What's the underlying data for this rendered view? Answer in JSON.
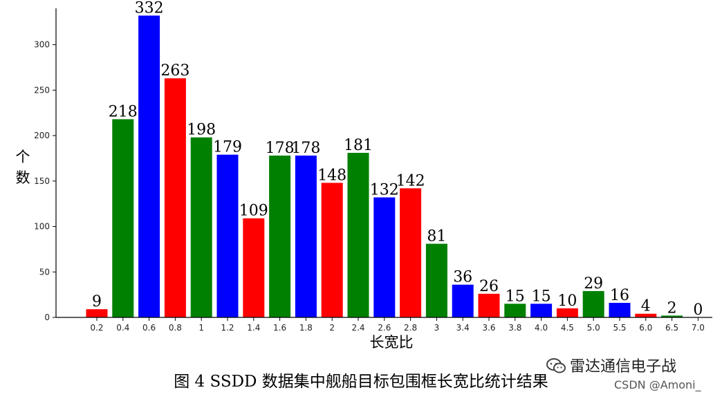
{
  "chart_data": {
    "type": "bar",
    "categories": [
      "0.2",
      "0.4",
      "0.6",
      "0.8",
      "1",
      "1.2",
      "1.4",
      "1.6",
      "1.8",
      "2",
      "2.4",
      "2.6",
      "2.8",
      "3",
      "3.4",
      "3.6",
      "3.8",
      "4.0",
      "4.5",
      "5.0",
      "5.5",
      "6.0",
      "6.5",
      "7.0"
    ],
    "values": [
      9,
      218,
      332,
      263,
      198,
      179,
      109,
      178,
      178,
      148,
      181,
      132,
      142,
      81,
      36,
      26,
      15,
      15,
      10,
      29,
      16,
      4,
      2,
      0
    ],
    "colors": [
      "#ff0000",
      "#008000",
      "#0000ff",
      "#ff0000",
      "#008000",
      "#0000ff",
      "#ff0000",
      "#008000",
      "#0000ff",
      "#ff0000",
      "#008000",
      "#0000ff",
      "#ff0000",
      "#008000",
      "#0000ff",
      "#ff0000",
      "#008000",
      "#0000ff",
      "#ff0000",
      "#008000",
      "#0000ff",
      "#ff0000",
      "#008000",
      "#0000ff"
    ],
    "title": "",
    "xlabel": "长宽比",
    "ylabel": "个数",
    "ylim": [
      0,
      340
    ],
    "yticks": [
      0,
      50,
      100,
      150,
      200,
      250,
      300
    ],
    "grid": false
  },
  "caption": "图 4 SSDD 数据集中舰船目标包围框长宽比统计结果",
  "watermark": "雷达通信电子战",
  "watermark_icon": "wechat-icon",
  "credit": "CSDN @Amoni_"
}
